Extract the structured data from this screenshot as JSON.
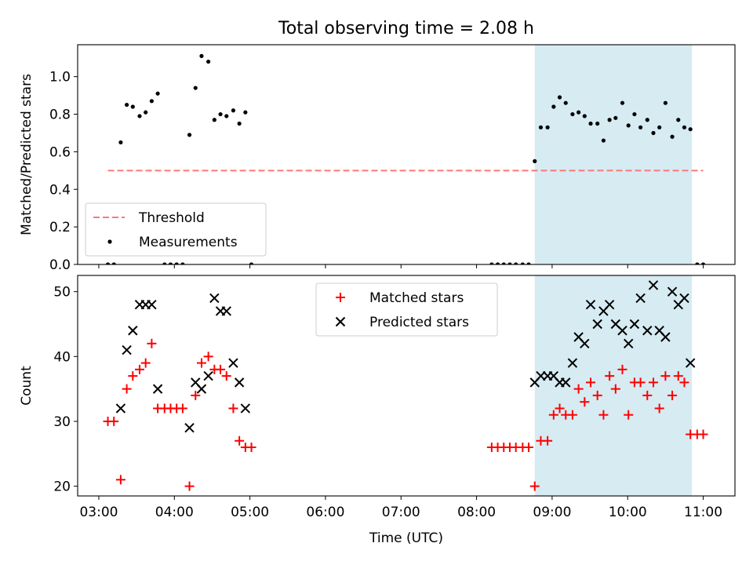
{
  "title": "Total observing time = 2.08 h",
  "chart_data": [
    {
      "type": "scatter",
      "panel": "top",
      "ylabel": "Matched/Predicted stars",
      "xlabel": "",
      "xlim": [
        2.72,
        11.42
      ],
      "ylim": [
        0,
        1.17
      ],
      "yticks": [
        0.0,
        0.2,
        0.4,
        0.6,
        0.8,
        1.0
      ],
      "ytick_labels": [
        "0.0",
        "0.2",
        "0.4",
        "0.6",
        "0.8",
        "1.0"
      ],
      "shaded_span": [
        8.77,
        10.85
      ],
      "shaded_color": "#add8e6",
      "legend_position": "lower-left",
      "series": [
        {
          "name": "Threshold",
          "kind": "dashed-line",
          "color": "#ff7777",
          "x": [
            3.12,
            11.0
          ],
          "y": [
            0.5,
            0.5
          ]
        },
        {
          "name": "Measurements",
          "kind": "dots",
          "color": "#000000",
          "x": [
            3.12,
            3.2,
            3.29,
            3.37,
            3.45,
            3.54,
            3.62,
            3.7,
            3.78,
            3.87,
            3.95,
            4.03,
            4.11,
            4.2,
            4.28,
            4.36,
            4.45,
            4.53,
            4.61,
            4.69,
            4.78,
            4.86,
            4.94,
            5.02,
            8.2,
            8.28,
            8.36,
            8.44,
            8.52,
            8.61,
            8.69,
            8.77,
            8.85,
            8.94,
            9.02,
            9.1,
            9.18,
            9.27,
            9.35,
            9.43,
            9.51,
            9.6,
            9.68,
            9.76,
            9.84,
            9.93,
            10.01,
            10.09,
            10.17,
            10.26,
            10.34,
            10.42,
            10.5,
            10.59,
            10.67,
            10.75,
            10.83,
            10.92,
            11.0
          ],
          "y": [
            0.0,
            0.0,
            0.65,
            0.85,
            0.84,
            0.79,
            0.81,
            0.87,
            0.91,
            0.0,
            0.0,
            0.0,
            0.0,
            0.69,
            0.94,
            1.11,
            1.08,
            0.77,
            0.8,
            0.79,
            0.82,
            0.75,
            0.81,
            0.0,
            0.0,
            0.0,
            0.0,
            0.0,
            0.0,
            0.0,
            0.0,
            0.55,
            0.73,
            0.73,
            0.84,
            0.89,
            0.86,
            0.8,
            0.81,
            0.79,
            0.75,
            0.75,
            0.66,
            0.77,
            0.78,
            0.86,
            0.74,
            0.8,
            0.73,
            0.77,
            0.7,
            0.73,
            0.86,
            0.68,
            0.77,
            0.73,
            0.72,
            0.0,
            0.0
          ]
        }
      ]
    },
    {
      "type": "scatter",
      "panel": "bottom",
      "ylabel": "Count",
      "xlabel": "Time (UTC)",
      "xlim": [
        2.72,
        11.42
      ],
      "ylim": [
        18.5,
        52.5
      ],
      "yticks": [
        20,
        30,
        40,
        50
      ],
      "ytick_labels": [
        "20",
        "30",
        "40",
        "50"
      ],
      "xticks": [
        3,
        4,
        5,
        6,
        7,
        8,
        9,
        10,
        11
      ],
      "xtick_labels": [
        "03:00",
        "04:00",
        "05:00",
        "06:00",
        "07:00",
        "08:00",
        "09:00",
        "10:00",
        "11:00"
      ],
      "shaded_span": [
        8.77,
        10.85
      ],
      "shaded_color": "#add8e6",
      "legend_position": "upper-center",
      "series": [
        {
          "name": "Matched stars",
          "kind": "plus",
          "color": "#ff0000",
          "x": [
            3.12,
            3.2,
            3.29,
            3.37,
            3.45,
            3.54,
            3.62,
            3.7,
            3.78,
            3.87,
            3.95,
            4.03,
            4.11,
            4.2,
            4.28,
            4.36,
            4.45,
            4.53,
            4.61,
            4.69,
            4.78,
            4.86,
            4.94,
            5.02,
            8.2,
            8.28,
            8.36,
            8.44,
            8.52,
            8.61,
            8.69,
            8.77,
            8.85,
            8.94,
            9.02,
            9.1,
            9.18,
            9.27,
            9.35,
            9.43,
            9.51,
            9.6,
            9.68,
            9.76,
            9.84,
            9.93,
            10.01,
            10.09,
            10.17,
            10.26,
            10.34,
            10.42,
            10.5,
            10.59,
            10.67,
            10.75,
            10.83,
            10.92,
            11.0
          ],
          "y": [
            30,
            30,
            21,
            35,
            37,
            38,
            39,
            42,
            32,
            32,
            32,
            32,
            32,
            20,
            34,
            39,
            40,
            38,
            38,
            37,
            32,
            27,
            26,
            26,
            26,
            26,
            26,
            26,
            26,
            26,
            26,
            20,
            27,
            27,
            31,
            32,
            31,
            31,
            35,
            33,
            36,
            34,
            31,
            37,
            35,
            38,
            31,
            36,
            36,
            34,
            36,
            32,
            37,
            34,
            37,
            36,
            28,
            28,
            28
          ]
        },
        {
          "name": "Predicted stars",
          "kind": "x",
          "color": "#000000",
          "x": [
            3.29,
            3.37,
            3.45,
            3.54,
            3.62,
            3.7,
            3.78,
            4.2,
            4.28,
            4.36,
            4.45,
            4.53,
            4.61,
            4.69,
            4.78,
            4.86,
            4.94,
            8.77,
            8.85,
            8.94,
            9.02,
            9.1,
            9.18,
            9.27,
            9.35,
            9.43,
            9.51,
            9.6,
            9.68,
            9.76,
            9.84,
            9.93,
            10.01,
            10.09,
            10.17,
            10.26,
            10.34,
            10.42,
            10.5,
            10.59,
            10.67,
            10.75,
            10.83
          ],
          "y": [
            32,
            41,
            44,
            48,
            48,
            48,
            35,
            29,
            36,
            35,
            37,
            49,
            47,
            47,
            39,
            36,
            32,
            36,
            37,
            37,
            37,
            36,
            36,
            39,
            43,
            42,
            48,
            45,
            47,
            48,
            45,
            44,
            42,
            45,
            49,
            44,
            51,
            44,
            43,
            50,
            48,
            49,
            39
          ]
        }
      ]
    }
  ]
}
